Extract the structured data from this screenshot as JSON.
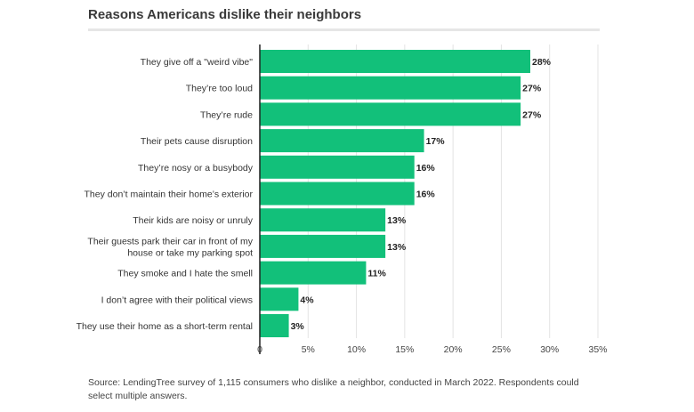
{
  "chart_data": {
    "type": "bar",
    "orientation": "horizontal",
    "title": "Reasons Americans dislike their neighbors",
    "categories": [
      [
        "They give off a \"weird vibe\""
      ],
      [
        "They’re too loud"
      ],
      [
        "They’re rude"
      ],
      [
        "Their pets cause disruption"
      ],
      [
        "They’re nosy or a busybody"
      ],
      [
        "They don’t maintain their home’s exterior"
      ],
      [
        "Their kids are noisy or unruly"
      ],
      [
        "Their guests park their car in front of my",
        "house or take my parking spot"
      ],
      [
        "They smoke and I hate the smell"
      ],
      [
        "I don’t agree with their political views"
      ],
      [
        "They use their home as a short-term rental"
      ]
    ],
    "values": [
      28,
      27,
      27,
      17,
      16,
      16,
      13,
      13,
      11,
      4,
      3
    ],
    "value_labels": [
      "28%",
      "27%",
      "27%",
      "17%",
      "16%",
      "16%",
      "13%",
      "13%",
      "11%",
      "4%",
      "3%"
    ],
    "xlim": [
      0,
      35
    ],
    "xticks": [
      0,
      5,
      10,
      15,
      20,
      25,
      30,
      35
    ],
    "xtick_labels": [
      "0",
      "5%",
      "10%",
      "15%",
      "20%",
      "25%",
      "30%",
      "35%"
    ],
    "grid": true,
    "bar_color": "#12c07a",
    "xlabel": "",
    "ylabel": ""
  },
  "source_note": "Source: LendingTree survey of 1,115 consumers who dislike a neighbor, conducted in March 2022. Respondents could select multiple answers."
}
